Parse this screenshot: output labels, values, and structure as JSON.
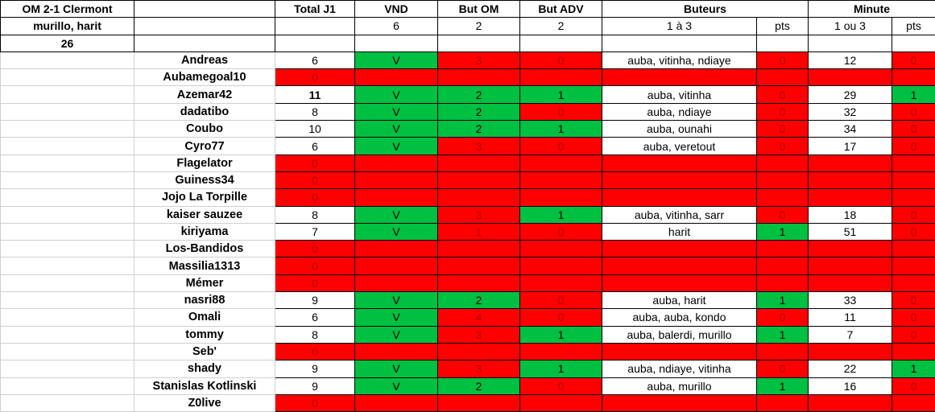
{
  "info": {
    "match": "OM 2-1 Clermont",
    "scorers": "murillo, harit",
    "minute": "26"
  },
  "headers": {
    "total": "Total J1",
    "vnd": "VND",
    "but_om": "But OM",
    "but_adv": "But ADV",
    "buteurs": "Buteurs",
    "minute": "Minute"
  },
  "subheaders": {
    "vnd": "6",
    "but_om": "2",
    "but_adv": "2",
    "buteurs": "1 à 3",
    "buteurs_pts": "pts",
    "minute": "1 ou 3",
    "minute_pts": "pts"
  },
  "colors": {
    "green": "#00c041",
    "red": "#fe0000"
  },
  "players": [
    {
      "name": "Andreas",
      "total": "6",
      "vnd": "V",
      "vnd_ok": true,
      "om": "3",
      "om_ok": false,
      "adv": "0",
      "adv_ok": false,
      "buteurs": "auba, vitinha, ndiaye",
      "bpts": "0",
      "bpts_ok": false,
      "minute": "12",
      "mpts": "0",
      "mpts_ok": false
    },
    {
      "name": "Aubamegoal10",
      "total": "0",
      "empty": true
    },
    {
      "name": "Azemar42",
      "total": "11",
      "total_bold": true,
      "vnd": "V",
      "vnd_ok": true,
      "om": "2",
      "om_ok": true,
      "adv": "1",
      "adv_ok": true,
      "buteurs": "auba, vitinha",
      "bpts": "0",
      "bpts_ok": false,
      "minute": "29",
      "mpts": "1",
      "mpts_ok": true
    },
    {
      "name": "dadatibo",
      "total": "8",
      "vnd": "V",
      "vnd_ok": true,
      "om": "2",
      "om_ok": true,
      "adv": "0",
      "adv_ok": false,
      "buteurs": "auba, ndiaye",
      "bpts": "0",
      "bpts_ok": false,
      "minute": "32",
      "mpts": "0",
      "mpts_ok": false
    },
    {
      "name": "Coubo",
      "total": "10",
      "vnd": "V",
      "vnd_ok": true,
      "om": "2",
      "om_ok": true,
      "adv": "1",
      "adv_ok": true,
      "buteurs": "auba, ounahi",
      "bpts": "0",
      "bpts_ok": false,
      "minute": "34",
      "mpts": "0",
      "mpts_ok": false
    },
    {
      "name": "Cyro77",
      "total": "6",
      "vnd": "V",
      "vnd_ok": true,
      "om": "3",
      "om_ok": false,
      "adv": "0",
      "adv_ok": false,
      "buteurs": "auba, veretout",
      "bpts": "0",
      "bpts_ok": false,
      "minute": "17",
      "mpts": "0",
      "mpts_ok": false
    },
    {
      "name": "Flagelator",
      "total": "0",
      "empty": true
    },
    {
      "name": "Guiness34",
      "total": "0",
      "empty": true
    },
    {
      "name": "Jojo La Torpille",
      "total": "0",
      "empty": true
    },
    {
      "name": "kaiser sauzee",
      "total": "8",
      "vnd": "V",
      "vnd_ok": true,
      "om": "3",
      "om_ok": false,
      "adv": "1",
      "adv_ok": true,
      "buteurs": "auba, vitinha, sarr",
      "bpts": "0",
      "bpts_ok": false,
      "minute": "18",
      "mpts": "0",
      "mpts_ok": false
    },
    {
      "name": "kiriyama",
      "total": "7",
      "vnd": "V",
      "vnd_ok": true,
      "om": "1",
      "om_ok": false,
      "adv": "0",
      "adv_ok": false,
      "buteurs": "harit",
      "bpts": "1",
      "bpts_ok": true,
      "minute": "51",
      "mpts": "0",
      "mpts_ok": false
    },
    {
      "name": "Los-Bandidos",
      "total": "0",
      "empty": true
    },
    {
      "name": "Massilia1313",
      "total": "0",
      "empty": true
    },
    {
      "name": "Mémer",
      "total": "0",
      "empty": true
    },
    {
      "name": "nasri88",
      "total": "9",
      "vnd": "V",
      "vnd_ok": true,
      "om": "2",
      "om_ok": true,
      "adv": "0",
      "adv_ok": false,
      "buteurs": "auba, harit",
      "bpts": "1",
      "bpts_ok": true,
      "minute": "33",
      "mpts": "0",
      "mpts_ok": false
    },
    {
      "name": "Omali",
      "total": "6",
      "vnd": "V",
      "vnd_ok": true,
      "om": "4",
      "om_ok": false,
      "adv": "0",
      "adv_ok": false,
      "buteurs": "auba, auba, kondo",
      "bpts": "0",
      "bpts_ok": false,
      "minute": "11",
      "mpts": "0",
      "mpts_ok": false
    },
    {
      "name": "tommy",
      "total": "8",
      "vnd": "V",
      "vnd_ok": true,
      "om": "3",
      "om_ok": false,
      "adv": "1",
      "adv_ok": true,
      "buteurs": "auba, balerdi, murillo",
      "bpts": "1",
      "bpts_ok": true,
      "minute": "7",
      "mpts": "0",
      "mpts_ok": false
    },
    {
      "name": "Seb'",
      "total": "0",
      "empty": true
    },
    {
      "name": "shady",
      "total": "9",
      "vnd": "V",
      "vnd_ok": true,
      "om": "3",
      "om_ok": false,
      "adv": "1",
      "adv_ok": true,
      "buteurs": "auba, ndiaye, vitinha",
      "bpts": "0",
      "bpts_ok": false,
      "minute": "22",
      "mpts": "1",
      "mpts_ok": true
    },
    {
      "name": "Stanislas Kotlinski",
      "total": "9",
      "vnd": "V",
      "vnd_ok": true,
      "om": "2",
      "om_ok": true,
      "adv": "0",
      "adv_ok": false,
      "buteurs": "auba, murillo",
      "bpts": "1",
      "bpts_ok": true,
      "minute": "16",
      "mpts": "0",
      "mpts_ok": false
    },
    {
      "name": "Z0live",
      "total": "0",
      "empty": true
    }
  ]
}
